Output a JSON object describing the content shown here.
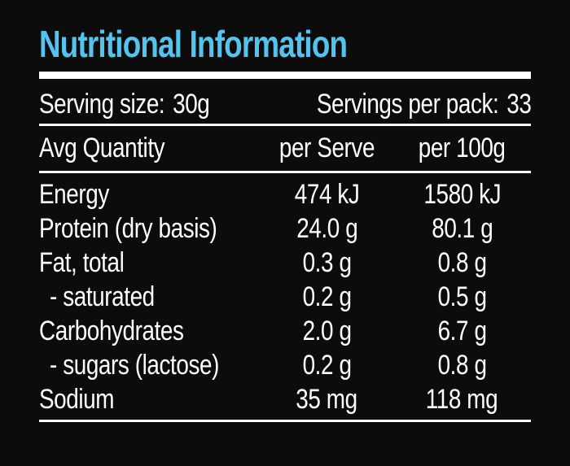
{
  "label": {
    "title": "Nutritional Information",
    "serving": {
      "size_label": "Serving size:",
      "size_value": "30g",
      "pack_label": "Servings per pack:",
      "pack_value": "33"
    },
    "columns": {
      "quantity": "Avg Quantity",
      "per_serve": "per Serve",
      "per_100g": "per 100g"
    },
    "rows": [
      {
        "name": "Energy",
        "per_serve": "474 kJ",
        "per_100g": "1580 kJ",
        "indent": false
      },
      {
        "name": "Protein (dry basis)",
        "per_serve": "24.0 g",
        "per_100g": "80.1 g",
        "indent": false
      },
      {
        "name": "Fat, total",
        "per_serve": "0.3 g",
        "per_100g": "0.8 g",
        "indent": false
      },
      {
        "name": "- saturated",
        "per_serve": "0.2 g",
        "per_100g": "0.5 g",
        "indent": true
      },
      {
        "name": "Carbohydrates",
        "per_serve": "2.0 g",
        "per_100g": "6.7 g",
        "indent": false
      },
      {
        "name": "- sugars (lactose)",
        "per_serve": "0.2 g",
        "per_100g": "0.8 g",
        "indent": true
      },
      {
        "name": "Sodium",
        "per_serve": "35 mg",
        "per_100g": "118 mg",
        "indent": false
      }
    ],
    "colors": {
      "accent": "#54c3ee",
      "background": "#0c0c0c",
      "text": "#ffffff"
    }
  }
}
